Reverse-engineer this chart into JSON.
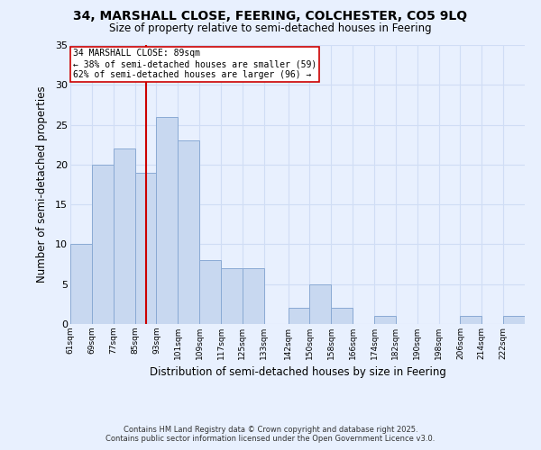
{
  "title": "34, MARSHALL CLOSE, FEERING, COLCHESTER, CO5 9LQ",
  "subtitle": "Size of property relative to semi-detached houses in Feering",
  "xlabel": "Distribution of semi-detached houses by size in Feering",
  "ylabel": "Number of semi-detached properties",
  "background_color": "#e8f0fe",
  "bar_color": "#c8d8f0",
  "bar_edge_color": "#8aaad4",
  "grid_color": "#d0ddf5",
  "bins": [
    61,
    69,
    77,
    85,
    93,
    101,
    109,
    117,
    125,
    133,
    142,
    150,
    158,
    166,
    174,
    182,
    190,
    198,
    206,
    214,
    222
  ],
  "bin_labels": [
    "61sqm",
    "69sqm",
    "77sqm",
    "85sqm",
    "93sqm",
    "101sqm",
    "109sqm",
    "117sqm",
    "125sqm",
    "133sqm",
    "142sqm",
    "150sqm",
    "158sqm",
    "166sqm",
    "174sqm",
    "182sqm",
    "190sqm",
    "198sqm",
    "206sqm",
    "214sqm",
    "222sqm"
  ],
  "counts": [
    10,
    20,
    22,
    19,
    26,
    23,
    8,
    7,
    7,
    0,
    2,
    5,
    2,
    0,
    1,
    0,
    0,
    0,
    1,
    0,
    1
  ],
  "vline_x": 89,
  "vline_color": "#cc0000",
  "annotation_title": "34 MARSHALL CLOSE: 89sqm",
  "annotation_line1": "← 38% of semi-detached houses are smaller (59)",
  "annotation_line2": "62% of semi-detached houses are larger (96) →",
  "annotation_box_color": "#ffffff",
  "annotation_box_edge": "#cc0000",
  "ylim": [
    0,
    35
  ],
  "yticks": [
    0,
    5,
    10,
    15,
    20,
    25,
    30,
    35
  ],
  "footer_line1": "Contains HM Land Registry data © Crown copyright and database right 2025.",
  "footer_line2": "Contains public sector information licensed under the Open Government Licence v3.0."
}
